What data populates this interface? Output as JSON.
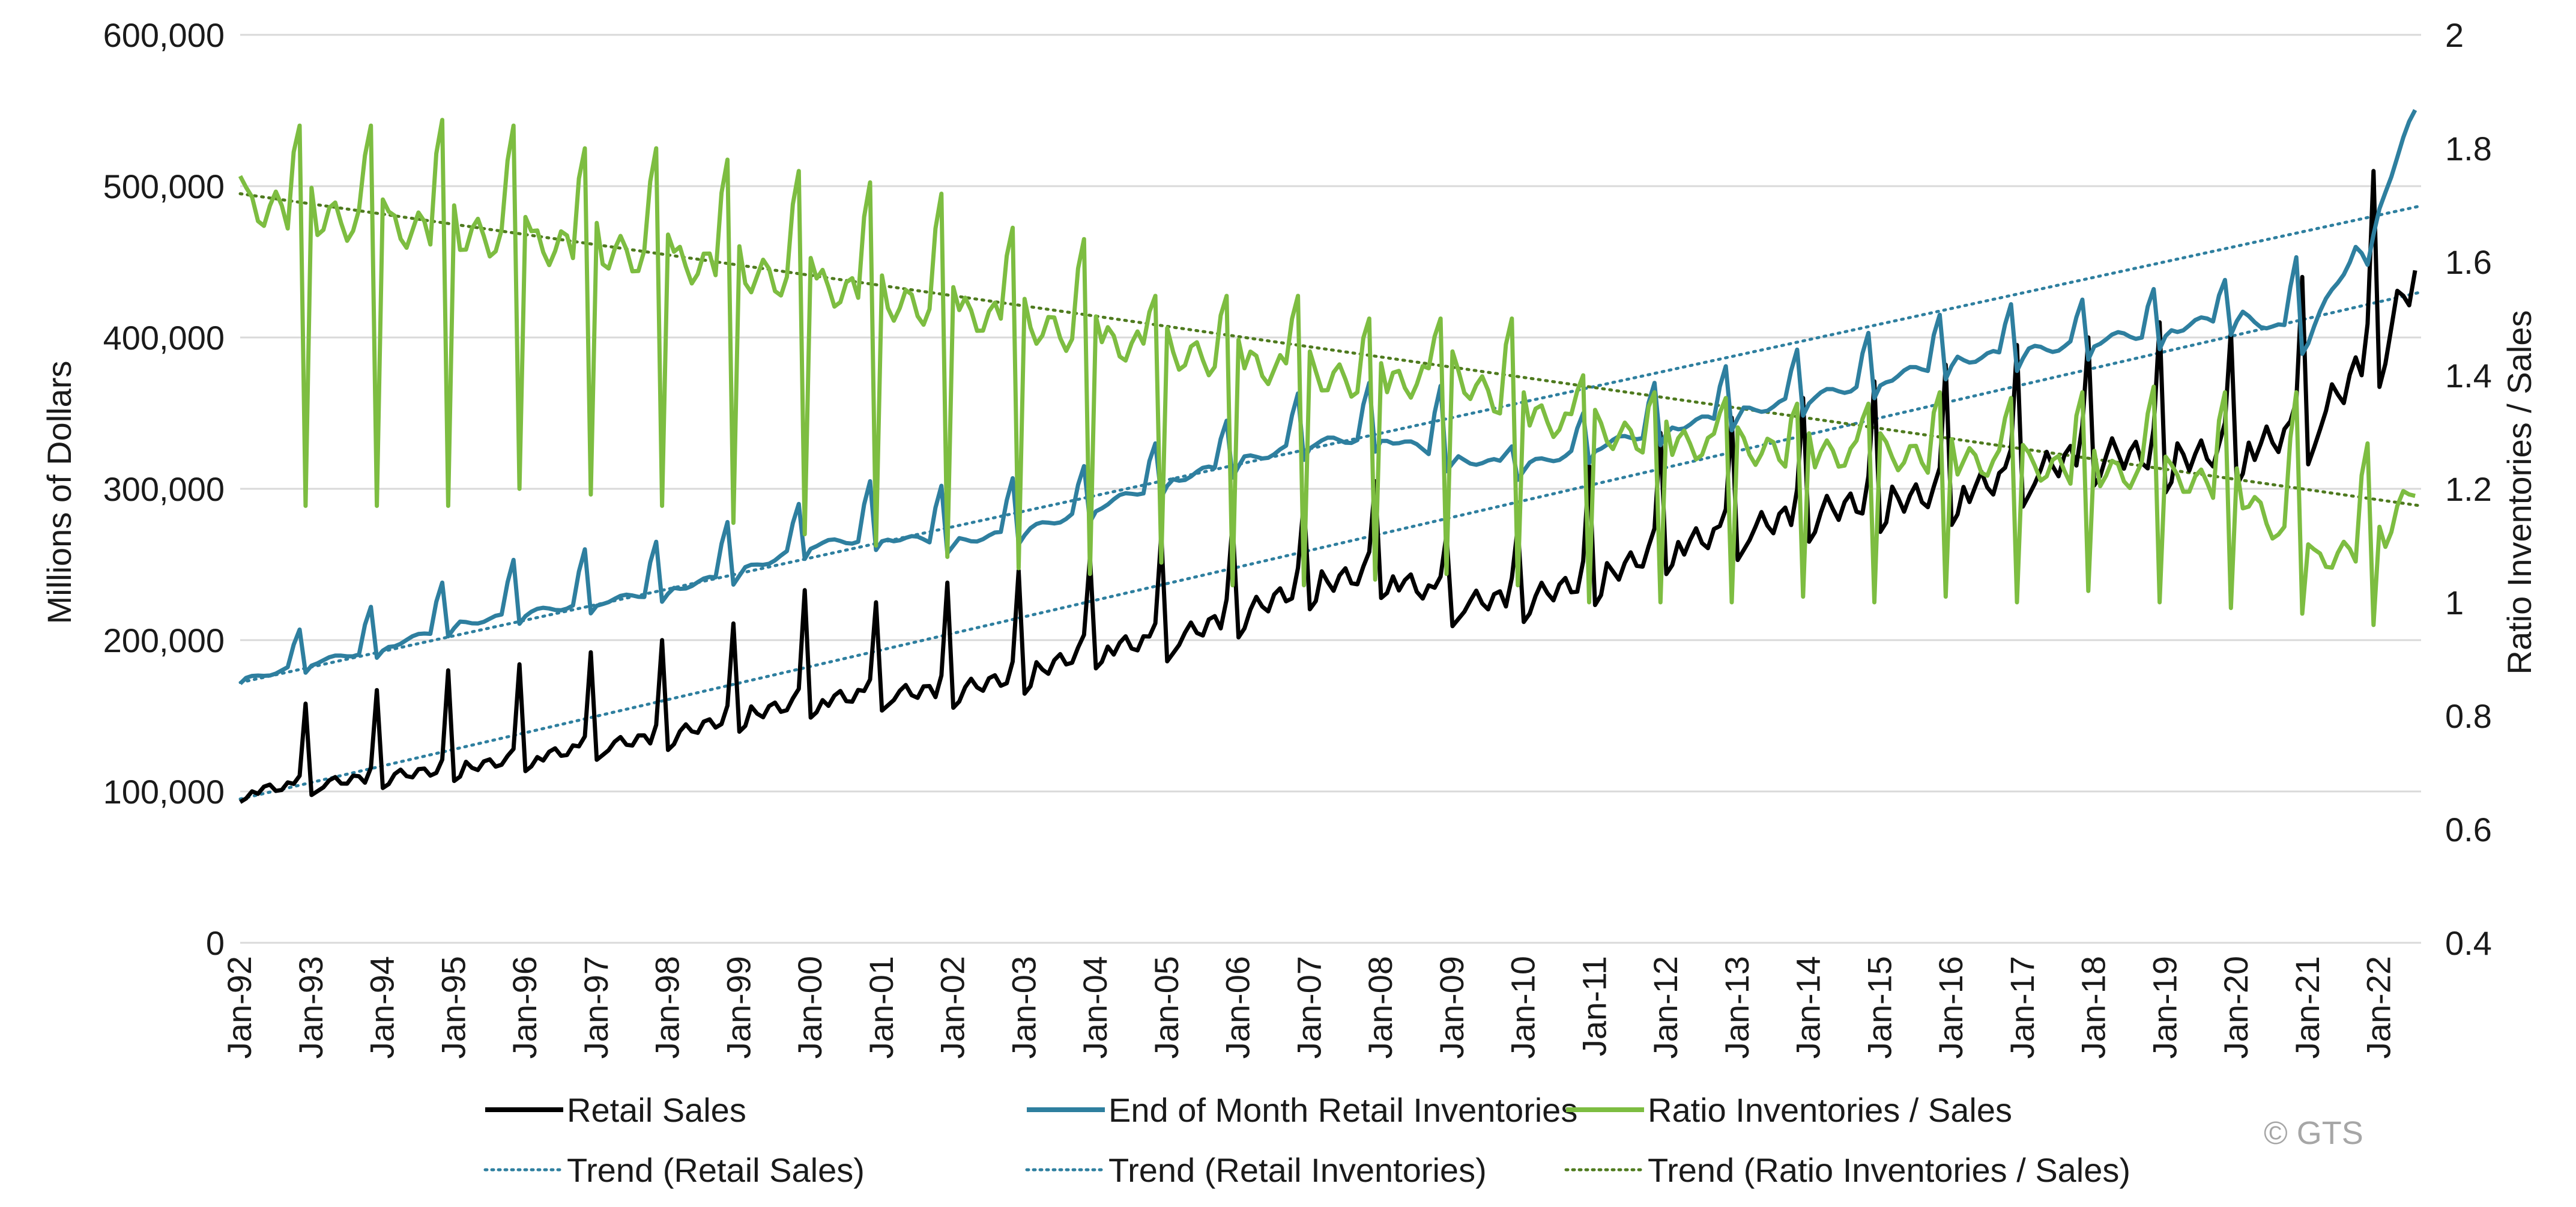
{
  "chart_data": {
    "type": "line",
    "title": "",
    "ylabel": "Millions of Dollars",
    "y2label": "Ratio Inventories / Sales",
    "ylim": [
      0,
      600000
    ],
    "y2lim": [
      0.4,
      2
    ],
    "yticks": [
      "0",
      "100,000",
      "200,000",
      "300,000",
      "400,000",
      "500,000",
      "600,000"
    ],
    "y2ticks": [
      "0.4",
      "0.6",
      "0.8",
      "1",
      "1.2",
      "1.4",
      "1.6",
      "1.8",
      "2"
    ],
    "xticks": [
      "Jan-92",
      "Jan-93",
      "Jan-94",
      "Jan-95",
      "Jan-96",
      "Jan-97",
      "Jan-98",
      "Jan-99",
      "Jan-00",
      "Jan-01",
      "Jan-02",
      "Jan-03",
      "Jan-04",
      "Jan-05",
      "Jan-06",
      "Jan-07",
      "Jan-08",
      "Jan-09",
      "Jan-10",
      "Jan-11",
      "Jan-12",
      "Jan-13",
      "Jan-14",
      "Jan-15",
      "Jan-16",
      "Jan-17",
      "Jan-18",
      "Jan-19",
      "Jan-20",
      "Jan-21",
      "Jan-22"
    ],
    "grid": true,
    "legend_position": "bottom",
    "copyright": "© GTS",
    "colors": {
      "retail_sales": "#000000",
      "inventories": "#2e7f9f",
      "ratio": "#7dbd41",
      "trend_sales": "#2e7f9f",
      "trend_inventories": "#2e7f9f",
      "trend_ratio": "#4e7a1e",
      "grid": "#d9d9d9"
    },
    "series": [
      {
        "name": "Retail Sales",
        "axis": "left",
        "x": [
          "Jan-92",
          "Jan-93",
          "Jan-94",
          "Jan-95",
          "Jan-96",
          "Jan-97",
          "Jan-98",
          "Jan-99",
          "Jan-00",
          "Jan-01",
          "Jan-02",
          "Jan-03",
          "Jan-04",
          "Jan-05",
          "Jan-06",
          "Jan-07",
          "Jan-08",
          "Jan-09",
          "Jan-10",
          "Jan-11",
          "Jan-12",
          "Jan-13",
          "Jan-14",
          "Jan-15",
          "Jan-16",
          "Jan-17",
          "Jan-18",
          "Jan-19",
          "Jan-20",
          "Jan-21",
          "Jan-22",
          "Aug-22"
        ],
        "values": [
          100000,
          105000,
          110000,
          115000,
          122000,
          130000,
          137000,
          150000,
          160000,
          165000,
          167000,
          177000,
          195000,
          200000,
          217000,
          237000,
          245000,
          225000,
          228000,
          240000,
          262000,
          272000,
          285000,
          292000,
          297000,
          310000,
          325000,
          320000,
          325000,
          340000,
          395000,
          450000
        ],
        "peaks_december": [
          158000,
          167000,
          180000,
          184000,
          192000,
          200000,
          211000,
          233000,
          225000,
          238000,
          246000,
          255000,
          270000,
          278000,
          292000,
          305000,
          270000,
          275000,
          315000,
          337000,
          347000,
          360000,
          371000,
          382000,
          395000,
          400000,
          410000,
          405000,
          440000,
          510000
        ]
      },
      {
        "name": "End of Month Retail Inventories",
        "axis": "left",
        "x": [
          "Jan-92",
          "Jan-93",
          "Jan-94",
          "Jan-95",
          "Jan-96",
          "Jan-97",
          "Jan-98",
          "Jan-99",
          "Jan-00",
          "Jan-01",
          "Jan-02",
          "Jan-03",
          "Jan-04",
          "Jan-05",
          "Jan-06",
          "Jan-07",
          "Jan-08",
          "Jan-09",
          "Jan-10",
          "Jan-11",
          "Jan-12",
          "Jan-13",
          "Jan-14",
          "Jan-15",
          "Jan-16",
          "Jan-17",
          "Jan-18",
          "Jan-19",
          "Jan-20",
          "Jan-21",
          "Jan-22",
          "Aug-22"
        ],
        "values": [
          173000,
          185000,
          195000,
          210000,
          218000,
          225000,
          233000,
          245000,
          263000,
          268000,
          265000,
          272000,
          288000,
          305000,
          318000,
          330000,
          335000,
          320000,
          315000,
          328000,
          340000,
          350000,
          360000,
          372000,
          385000,
          390000,
          398000,
          405000,
          415000,
          400000,
          490000,
          558000
        ],
        "peaks_november": [
          207000,
          222000,
          238000,
          253000,
          260000,
          265000,
          278000,
          290000,
          305000,
          302000,
          307000,
          315000,
          330000,
          345000,
          363000,
          370000,
          368000,
          328000,
          350000,
          370000,
          381000,
          392000,
          403000,
          415000,
          422000,
          425000,
          432000,
          438000,
          453000,
          448000,
          500000
        ]
      },
      {
        "name": "Ratio Inventories / Sales",
        "axis": "right",
        "x": [
          "Jan-92",
          "Jan-93",
          "Jan-94",
          "Jan-95",
          "Jan-96",
          "Jan-97",
          "Jan-98",
          "Jan-99",
          "Jan-00",
          "Jan-01",
          "Jan-02",
          "Jan-03",
          "Jan-04",
          "Jan-05",
          "Jan-06",
          "Jan-07",
          "Jan-08",
          "Jan-09",
          "Jan-10",
          "Jan-11",
          "Jan-12",
          "Jan-13",
          "Jan-14",
          "Jan-15",
          "Jan-16",
          "Jan-17",
          "Jan-18",
          "Jan-19",
          "Jan-20",
          "Jan-21",
          "Jan-22",
          "Aug-22"
        ],
        "values": [
          1.7,
          1.68,
          1.66,
          1.65,
          1.63,
          1.62,
          1.6,
          1.58,
          1.56,
          1.53,
          1.51,
          1.49,
          1.46,
          1.44,
          1.42,
          1.4,
          1.38,
          1.4,
          1.33,
          1.3,
          1.28,
          1.27,
          1.26,
          1.26,
          1.25,
          1.24,
          1.23,
          1.22,
          1.2,
          1.07,
          1.1,
          1.23
        ],
        "peaks": [
          1.84,
          1.84,
          1.85,
          1.84,
          1.8,
          1.8,
          1.78,
          1.76,
          1.74,
          1.72,
          1.66,
          1.64,
          1.54,
          1.54,
          1.54,
          1.5,
          1.5,
          1.5,
          1.4,
          1.37,
          1.36,
          1.35,
          1.35,
          1.37,
          1.36,
          1.37,
          1.38,
          1.37,
          1.37,
          1.28,
          1.27
        ],
        "troughs_december": [
          1.17,
          1.17,
          1.17,
          1.2,
          1.19,
          1.17,
          1.14,
          1.12,
          1.1,
          1.08,
          1.06,
          1.05,
          1.07,
          1.03,
          1.03,
          1.04,
          1.05,
          1.03,
          1.0,
          1.0,
          1.0,
          1.01,
          1.0,
          1.01,
          1.0,
          1.02,
          1.0,
          0.99,
          0.98,
          0.96,
          0.96
        ]
      },
      {
        "name": "Trend (Retail Sales)",
        "axis": "left",
        "style": "dotted",
        "x": [
          "Jan-92",
          "Aug-22"
        ],
        "values": [
          95000,
          430000
        ]
      },
      {
        "name": "Trend (Retail Inventories)",
        "axis": "left",
        "style": "dotted",
        "x": [
          "Jan-92",
          "Aug-22"
        ],
        "values": [
          172000,
          487000
        ]
      },
      {
        "name": "Trend (Ratio Inventories / Sales)",
        "axis": "right",
        "style": "dotted",
        "x": [
          "Jan-92",
          "Aug-22"
        ],
        "values": [
          1.72,
          1.17
        ]
      }
    ]
  },
  "legend": {
    "row1": [
      "Retail Sales",
      "End of Month Retail Inventories",
      "Ratio Inventories / Sales"
    ],
    "row2": [
      "Trend (Retail Sales)",
      "Trend (Retail Inventories)",
      "Trend (Ratio Inventories / Sales)"
    ]
  }
}
